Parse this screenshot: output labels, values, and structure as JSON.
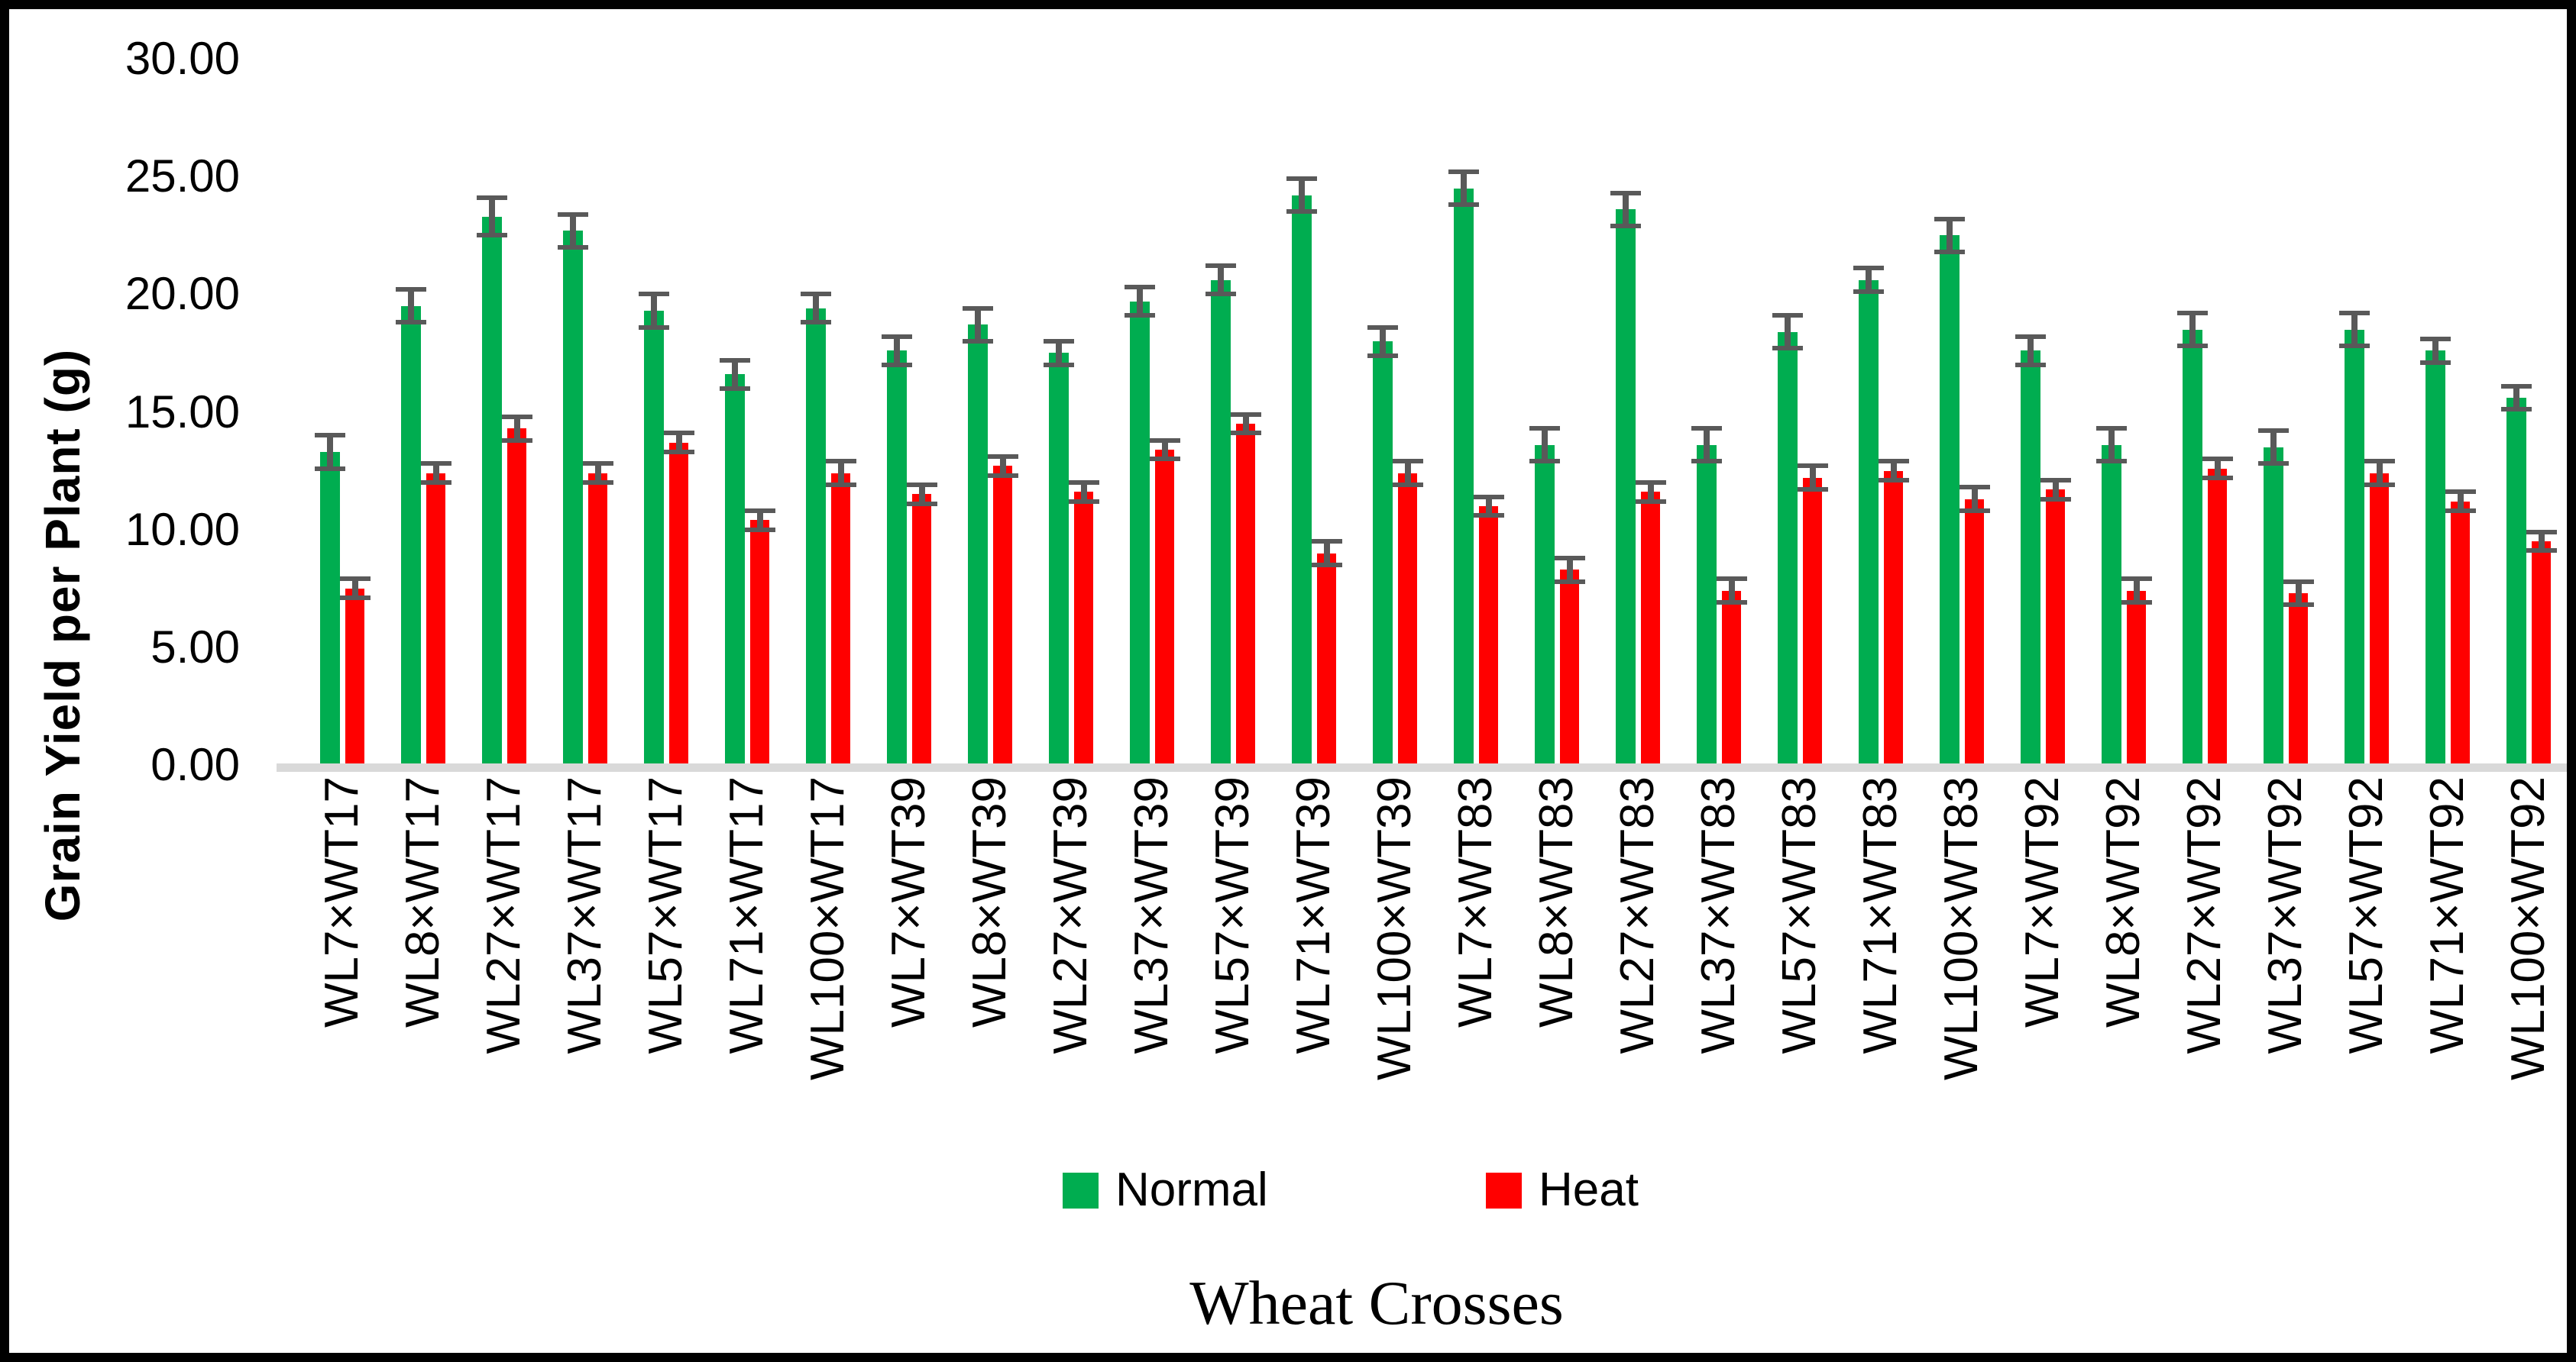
{
  "figure": {
    "frame_color": "#000000",
    "background": "#ffffff",
    "baseline_color": "#D9D9D9",
    "error_bar_color": "#595959"
  },
  "legend": {
    "items": [
      {
        "label": "Normal",
        "color": "#00AD50",
        "swatch": "green-square-icon"
      },
      {
        "label": "Heat",
        "color": "#FF0000",
        "swatch": "red-square-icon"
      }
    ]
  },
  "chart_data": {
    "type": "bar",
    "title": "",
    "xlabel": "Wheat Crosses",
    "ylabel": "Grain Yield per Plant (g)",
    "ylim": [
      0,
      30
    ],
    "ytick_step": 5,
    "ytick_labels": [
      "30.00",
      "25.00",
      "20.00",
      "15.00",
      "10.00",
      "5.00",
      "0.00"
    ],
    "grid": "off",
    "legend_position": "bottom",
    "error_bars": true,
    "categories": [
      "WL7×WT17",
      "WL8×WT17",
      "WL27×WT17",
      "WL37×WT17",
      "WL57×WT17",
      "WL71×WT17",
      "WL100×WT17",
      "WL7×WT39",
      "WL8×WT39",
      "WL27×WT39",
      "WL37×WT39",
      "WL57×WT39",
      "WL71×WT39",
      "WL100×WT39",
      "WL7×WT83",
      "WL8×WT83",
      "WL27×WT83",
      "WL37×WT83",
      "WL57×WT83",
      "WL71×WT83",
      "WL100×WT83",
      "WL7×WT92",
      "WL8×WT92",
      "WL27×WT92",
      "WL37×WT92",
      "WL57×WT92",
      "WL71×WT92",
      "WL100×WT92"
    ],
    "series": [
      {
        "name": "Normal",
        "color": "#00AD50",
        "values": [
          13.3,
          19.5,
          23.3,
          22.7,
          19.3,
          16.6,
          19.4,
          17.6,
          18.7,
          17.5,
          19.7,
          20.6,
          24.2,
          18.0,
          24.5,
          13.6,
          23.6,
          13.6,
          18.4,
          20.6,
          22.5,
          17.6,
          13.6,
          18.5,
          13.5,
          18.5,
          17.6,
          15.6
        ],
        "errors": [
          0.7,
          0.7,
          0.8,
          0.7,
          0.7,
          0.6,
          0.6,
          0.6,
          0.7,
          0.5,
          0.6,
          0.6,
          0.7,
          0.6,
          0.7,
          0.7,
          0.7,
          0.7,
          0.7,
          0.5,
          0.7,
          0.6,
          0.7,
          0.7,
          0.7,
          0.7,
          0.5,
          0.5
        ]
      },
      {
        "name": "Heat",
        "color": "#FF0000",
        "values": [
          7.5,
          12.4,
          14.3,
          12.4,
          13.7,
          10.4,
          12.4,
          11.5,
          12.7,
          11.6,
          13.4,
          14.5,
          9.0,
          12.4,
          11.0,
          8.3,
          11.6,
          7.4,
          12.2,
          12.5,
          11.3,
          11.7,
          7.4,
          12.6,
          7.3,
          12.4,
          11.2,
          9.5
        ],
        "errors": [
          0.4,
          0.4,
          0.5,
          0.4,
          0.4,
          0.4,
          0.5,
          0.4,
          0.4,
          0.4,
          0.4,
          0.4,
          0.5,
          0.5,
          0.4,
          0.5,
          0.4,
          0.5,
          0.5,
          0.4,
          0.5,
          0.4,
          0.5,
          0.4,
          0.5,
          0.5,
          0.4,
          0.4
        ]
      }
    ]
  }
}
